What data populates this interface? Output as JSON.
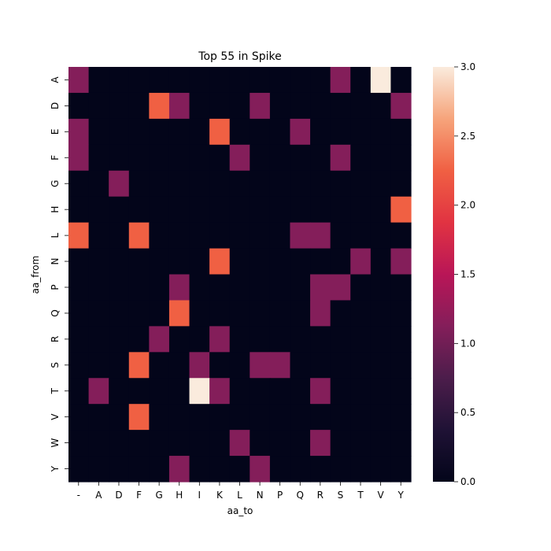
{
  "chart_data": {
    "type": "heatmap",
    "title": "Top 55 in Spike",
    "xlabel": "aa_to",
    "ylabel": "aa_from",
    "x_categories": [
      "-",
      "A",
      "D",
      "F",
      "G",
      "H",
      "I",
      "K",
      "L",
      "N",
      "P",
      "Q",
      "R",
      "S",
      "T",
      "V",
      "Y"
    ],
    "y_categories": [
      "A",
      "D",
      "E",
      "F",
      "G",
      "H",
      "L",
      "N",
      "P",
      "Q",
      "R",
      "S",
      "T",
      "V",
      "W",
      "Y"
    ],
    "values": [
      [
        1,
        0,
        0,
        0,
        0,
        0,
        0,
        0,
        0,
        0,
        0,
        0,
        0,
        1,
        0,
        3,
        0
      ],
      [
        0,
        0,
        0,
        0,
        2,
        1,
        0,
        0,
        0,
        1,
        0,
        0,
        0,
        0,
        0,
        0,
        1
      ],
      [
        1,
        0,
        0,
        0,
        0,
        0,
        0,
        2,
        0,
        0,
        0,
        1,
        0,
        0,
        0,
        0,
        0
      ],
      [
        1,
        0,
        0,
        0,
        0,
        0,
        0,
        0,
        1,
        0,
        0,
        0,
        0,
        1,
        0,
        0,
        0
      ],
      [
        0,
        0,
        1,
        0,
        0,
        0,
        0,
        0,
        0,
        0,
        0,
        0,
        0,
        0,
        0,
        0,
        0
      ],
      [
        0,
        0,
        0,
        0,
        0,
        0,
        0,
        0,
        0,
        0,
        0,
        0,
        0,
        0,
        0,
        0,
        2
      ],
      [
        2,
        0,
        0,
        2,
        0,
        0,
        0,
        0,
        0,
        0,
        0,
        1,
        1,
        0,
        0,
        0,
        0
      ],
      [
        0,
        0,
        0,
        0,
        0,
        0,
        0,
        2,
        0,
        0,
        0,
        0,
        0,
        0,
        1,
        0,
        1
      ],
      [
        0,
        0,
        0,
        0,
        0,
        1,
        0,
        0,
        0,
        0,
        0,
        0,
        1,
        1,
        0,
        0,
        0
      ],
      [
        0,
        0,
        0,
        0,
        0,
        2,
        0,
        0,
        0,
        0,
        0,
        0,
        1,
        0,
        0,
        0,
        0
      ],
      [
        0,
        0,
        0,
        0,
        1,
        0,
        0,
        1,
        0,
        0,
        0,
        0,
        0,
        0,
        0,
        0,
        0
      ],
      [
        0,
        0,
        0,
        2,
        0,
        0,
        1,
        0,
        0,
        1,
        1,
        0,
        0,
        0,
        0,
        0,
        0
      ],
      [
        0,
        1,
        0,
        0,
        0,
        0,
        3,
        1,
        0,
        0,
        0,
        0,
        1,
        0,
        0,
        0,
        0
      ],
      [
        0,
        0,
        0,
        2,
        0,
        0,
        0,
        0,
        0,
        0,
        0,
        0,
        0,
        0,
        0,
        0,
        0
      ],
      [
        0,
        0,
        0,
        0,
        0,
        0,
        0,
        0,
        1,
        0,
        0,
        0,
        1,
        0,
        0,
        0,
        0
      ],
      [
        0,
        0,
        0,
        0,
        0,
        1,
        0,
        0,
        0,
        1,
        0,
        0,
        0,
        0,
        0,
        0,
        0
      ]
    ],
    "colorbar": {
      "min": 0,
      "max": 3,
      "ticks": [
        0.0,
        0.5,
        1.0,
        1.5,
        2.0,
        2.5,
        3.0
      ],
      "tick_labels": [
        "0.0",
        "0.5",
        "1.0",
        "1.5",
        "2.0",
        "2.5",
        "3.0"
      ]
    },
    "colors": {
      "v0": "#03051a",
      "v1": "#841e5a",
      "v2": "#f06043",
      "v3": "#faebdd"
    },
    "colorscale": [
      "#03051a",
      "#1f1235",
      "#4c1d4b",
      "#841e5a",
      "#b91657",
      "#e13342",
      "#f06043",
      "#f6a47b",
      "#faebdd"
    ]
  }
}
